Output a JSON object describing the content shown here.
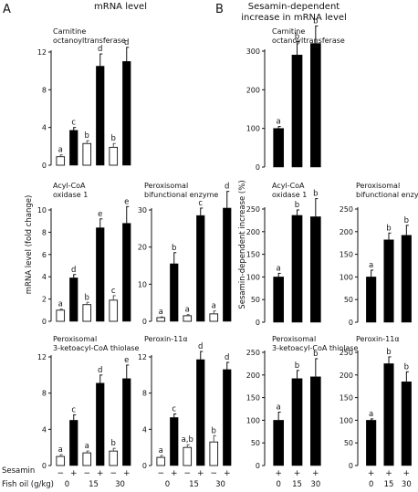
{
  "panel_labels": {
    "A": "A",
    "B": "B"
  },
  "column_titles": {
    "A": "mRNA level",
    "B": "Sesamin-dependent\nincrease in mRNA level"
  },
  "y_labels": {
    "A": "mRNA level (fold change)",
    "B": "Sesamin-dependent increase (%)"
  },
  "x_rows": {
    "sesamin_label": "Sesamin",
    "fish_label": "Fish oil (g/kg)",
    "signs_a": [
      "−",
      "+",
      "−",
      "+",
      "−",
      "+"
    ],
    "signs_b": [
      "+",
      "+",
      "+"
    ],
    "doses_a": [
      "0",
      "15",
      "30"
    ],
    "doses_b": [
      "0",
      "15",
      "30"
    ]
  },
  "chart_data": [
    {
      "id": "a-cot",
      "type": "bar",
      "title": "Carnitine\noctanoyltransferase",
      "ylim": [
        0,
        12
      ],
      "yticks": [
        "0",
        "4",
        "8",
        "12"
      ],
      "categories": [
        "0",
        "15",
        "30"
      ],
      "series": [
        {
          "name": "Sesamin −",
          "values": [
            0.9,
            2.3,
            1.9
          ],
          "errors": [
            0.2,
            0.3,
            0.4
          ],
          "letters": [
            "a",
            "b",
            "b"
          ],
          "color": "#ffffff"
        },
        {
          "name": "Sesamin +",
          "values": [
            3.7,
            10.5,
            11.0
          ],
          "errors": [
            0.3,
            1.3,
            1.5
          ],
          "letters": [
            "c",
            "d",
            "d"
          ],
          "color": "#000000"
        }
      ]
    },
    {
      "id": "a-aco",
      "type": "bar",
      "title": "Acyl-CoA\noxidase 1",
      "ylim": [
        0,
        10
      ],
      "yticks": [
        "0",
        "2",
        "4",
        "6",
        "8",
        "10"
      ],
      "categories": [
        "0",
        "15",
        "30"
      ],
      "series": [
        {
          "name": "Sesamin −",
          "values": [
            1.0,
            1.5,
            1.9
          ],
          "errors": [
            0.1,
            0.2,
            0.4
          ],
          "letters": [
            "a",
            "b",
            "c"
          ],
          "color": "#ffffff"
        },
        {
          "name": "Sesamin +",
          "values": [
            3.9,
            8.4,
            8.8
          ],
          "errors": [
            0.3,
            0.8,
            1.5
          ],
          "letters": [
            "d",
            "e",
            "e"
          ],
          "color": "#000000"
        }
      ]
    },
    {
      "id": "a-pbe",
      "type": "bar",
      "title": "Peroxisomal\nbifunctional enzyme",
      "ylim": [
        0,
        30
      ],
      "yticks": [
        "0",
        "10",
        "20",
        "30"
      ],
      "categories": [
        "0",
        "15",
        "30"
      ],
      "series": [
        {
          "name": "Sesamin −",
          "values": [
            1.0,
            1.5,
            2.0
          ],
          "errors": [
            0.2,
            0.3,
            0.8
          ],
          "letters": [
            "a",
            "a",
            "a"
          ],
          "color": "#ffffff"
        },
        {
          "name": "Sesamin +",
          "values": [
            15.5,
            28.5,
            30.5
          ],
          "errors": [
            3.0,
            2.0,
            4.5
          ],
          "letters": [
            "b",
            "c",
            "d"
          ],
          "color": "#000000"
        }
      ]
    },
    {
      "id": "a-thio",
      "type": "bar",
      "title": "Peroxisomal\n3-ketoacyl-CoA thiolase",
      "ylim": [
        0,
        12
      ],
      "yticks": [
        "0",
        "4",
        "8",
        "12"
      ],
      "categories": [
        "0",
        "15",
        "30"
      ],
      "series": [
        {
          "name": "Sesamin −",
          "values": [
            1.0,
            1.4,
            1.6
          ],
          "errors": [
            0.2,
            0.2,
            0.3
          ],
          "letters": [
            "a",
            "a",
            "b"
          ],
          "color": "#ffffff"
        },
        {
          "name": "Sesamin +",
          "values": [
            5.0,
            9.1,
            9.6
          ],
          "errors": [
            0.6,
            0.9,
            1.5
          ],
          "letters": [
            "c",
            "d",
            "e"
          ],
          "color": "#000000"
        }
      ]
    },
    {
      "id": "a-pex",
      "type": "bar",
      "title": "Peroxin-11α",
      "ylim": [
        0,
        12
      ],
      "yticks": [
        "0",
        "4",
        "8",
        "12"
      ],
      "categories": [
        "0",
        "15",
        "30"
      ],
      "series": [
        {
          "name": "Sesamin −",
          "values": [
            0.9,
            2.0,
            2.6
          ],
          "errors": [
            0.2,
            0.3,
            0.7
          ],
          "letters": [
            "a",
            "a,b",
            "b"
          ],
          "color": "#ffffff"
        },
        {
          "name": "Sesamin +",
          "values": [
            5.3,
            11.7,
            10.6
          ],
          "errors": [
            0.4,
            0.9,
            0.8
          ],
          "letters": [
            "c",
            "d",
            "d"
          ],
          "color": "#000000"
        }
      ]
    },
    {
      "id": "b-cot",
      "type": "bar",
      "title": "Carnitine\noctanoyltransferase",
      "ylim": [
        0,
        300
      ],
      "yticks": [
        "0",
        "100",
        "200",
        "300"
      ],
      "categories": [
        "0",
        "15",
        "30"
      ],
      "series": [
        {
          "name": "Sesamin +",
          "values": [
            100,
            290,
            320
          ],
          "errors": [
            5,
            35,
            45
          ],
          "letters": [
            "a",
            "b",
            "b"
          ],
          "color": "#000000"
        }
      ]
    },
    {
      "id": "b-aco",
      "type": "bar",
      "title": "Acyl-CoA\noxidase 1",
      "ylim": [
        0,
        250
      ],
      "yticks": [
        "0",
        "50",
        "100",
        "150",
        "200",
        "250"
      ],
      "categories": [
        "0",
        "15",
        "30"
      ],
      "series": [
        {
          "name": "Sesamin +",
          "values": [
            100,
            236,
            233
          ],
          "errors": [
            8,
            12,
            40
          ],
          "letters": [
            "a",
            "b",
            "b"
          ],
          "color": "#000000"
        }
      ]
    },
    {
      "id": "b-pbe",
      "type": "bar",
      "title": "Peroxisomal\nbifunctional enzyme",
      "ylim": [
        0,
        250
      ],
      "yticks": [
        "0",
        "50",
        "100",
        "150",
        "200",
        "250"
      ],
      "categories": [
        "0",
        "15",
        "30"
      ],
      "series": [
        {
          "name": "Sesamin +",
          "values": [
            100,
            182,
            192
          ],
          "errors": [
            15,
            15,
            22
          ],
          "letters": [
            "a",
            "b",
            "b"
          ],
          "color": "#000000"
        }
      ]
    },
    {
      "id": "b-thio",
      "type": "bar",
      "title": "Peroxisomal\n3-ketoacyl-CoA thiolase",
      "ylim": [
        0,
        250
      ],
      "yticks": [
        "0",
        "50",
        "100",
        "150",
        "200",
        "250"
      ],
      "categories": [
        "0",
        "15",
        "30"
      ],
      "series": [
        {
          "name": "Sesamin +",
          "values": [
            100,
            192,
            196
          ],
          "errors": [
            18,
            18,
            40
          ],
          "letters": [
            "a",
            "b",
            "b"
          ],
          "color": "#000000"
        }
      ]
    },
    {
      "id": "b-pex",
      "type": "bar",
      "title": "Peroxin-11α",
      "ylim": [
        0,
        250
      ],
      "yticks": [
        "0",
        "50",
        "100",
        "150",
        "200",
        "250"
      ],
      "categories": [
        "0",
        "15",
        "30"
      ],
      "series": [
        {
          "name": "Sesamin +",
          "values": [
            100,
            225,
            185
          ],
          "errors": [
            3,
            15,
            22
          ],
          "letters": [
            "a",
            "b",
            "b"
          ],
          "color": "#000000"
        }
      ]
    }
  ]
}
